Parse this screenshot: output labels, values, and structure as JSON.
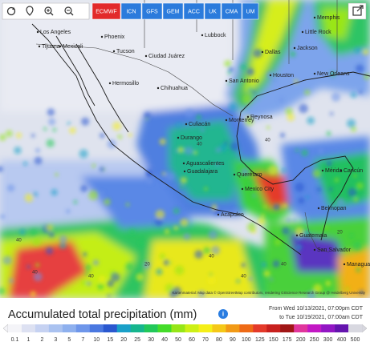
{
  "toolbar": {
    "models": [
      "ECMWF",
      "ICN",
      "GFS",
      "GEM",
      "ACC",
      "UK",
      "CMA",
      "UM"
    ],
    "active_model": "ECMWF"
  },
  "map": {
    "cities": [
      "Los Angeles",
      "Tijuana",
      "Mexicali",
      "Phoenix",
      "Tucson",
      "Hermosillo",
      "Chihuahua",
      "Ciudad Juárez",
      "Lubbock",
      "Dallas",
      "Memphis",
      "Little Rock",
      "Jackson",
      "New Orleans",
      "Houston",
      "San Antonio",
      "Monterrey",
      "Reynosa",
      "Culiacán",
      "Durango",
      "Aguascalientes",
      "Guadalajara",
      "Querétaro",
      "Mexico City",
      "Acapulco",
      "Mérida",
      "Cancún",
      "Belmopan",
      "Guatemala",
      "San Salvador",
      "Managua"
    ],
    "amount_labels": [
      "40",
      "40",
      "20",
      "40",
      "40",
      "40",
      "20",
      "40",
      "40",
      "40"
    ],
    "attribution": "Kartenmaterial: Map data © OpenStreetMap contributors, rendering GIScience Research Group @ Heidelberg University"
  },
  "legend": {
    "title": "Accumulated total precipitation (mm)",
    "from": "From Wed 10/13/2021, 07:00pm CDT",
    "to": "to Tue 10/19/2021, 07:00am CDT",
    "scale": [
      "0.1",
      "1",
      "2",
      "3",
      "5",
      "7",
      "10",
      "15",
      "20",
      "25",
      "30",
      "40",
      "50",
      "60",
      "70",
      "80",
      "90",
      "100",
      "125",
      "150",
      "175",
      "200",
      "250",
      "300",
      "400",
      "500"
    ],
    "colors": [
      "#f4f4f8",
      "#dde1f2",
      "#c6d2f2",
      "#aac2f0",
      "#8eb0ee",
      "#6e96ea",
      "#4a78e0",
      "#2a58cf",
      "#1aa0c8",
      "#16b68e",
      "#22c85a",
      "#44dc2a",
      "#96e618",
      "#cdf016",
      "#f5ef18",
      "#f5c818",
      "#f29a16",
      "#ee6a16",
      "#e43a2a",
      "#c8201e",
      "#a01616",
      "#e0369c",
      "#c218c4",
      "#9216c4",
      "#6414ae",
      "#d8d8e0"
    ]
  }
}
